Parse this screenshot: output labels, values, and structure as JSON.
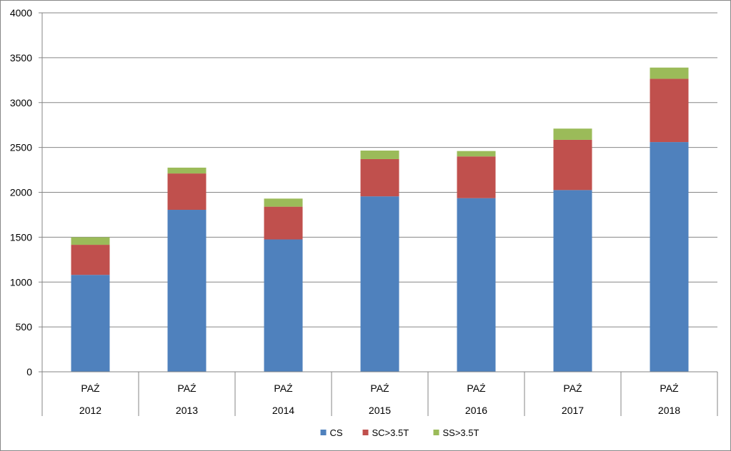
{
  "chart_data": {
    "type": "bar",
    "stacked": true,
    "title": "",
    "xlabel": "",
    "ylabel": "",
    "categories": [
      {
        "month": "PAŹ",
        "year": "2012"
      },
      {
        "month": "PAŹ",
        "year": "2013"
      },
      {
        "month": "PAŹ",
        "year": "2014"
      },
      {
        "month": "PAŹ",
        "year": "2015"
      },
      {
        "month": "PAŹ",
        "year": "2016"
      },
      {
        "month": "PAŹ",
        "year": "2017"
      },
      {
        "month": "PAŹ",
        "year": "2018"
      }
    ],
    "series": [
      {
        "name": "CS",
        "color": "#4F81BD",
        "values": [
          1080,
          1805,
          1475,
          1955,
          1935,
          2025,
          2560
        ]
      },
      {
        "name": "SC>3.5T",
        "color": "#C0504D",
        "values": [
          335,
          405,
          365,
          415,
          465,
          560,
          705
        ]
      },
      {
        "name": "SS>3.5T",
        "color": "#9BBB59",
        "values": [
          85,
          65,
          90,
          95,
          60,
          125,
          125
        ]
      }
    ],
    "ylim": [
      0,
      4000
    ],
    "yticks": [
      0,
      500,
      1000,
      1500,
      2000,
      2500,
      3000,
      3500,
      4000
    ],
    "grid": true,
    "legend_position": "bottom"
  }
}
